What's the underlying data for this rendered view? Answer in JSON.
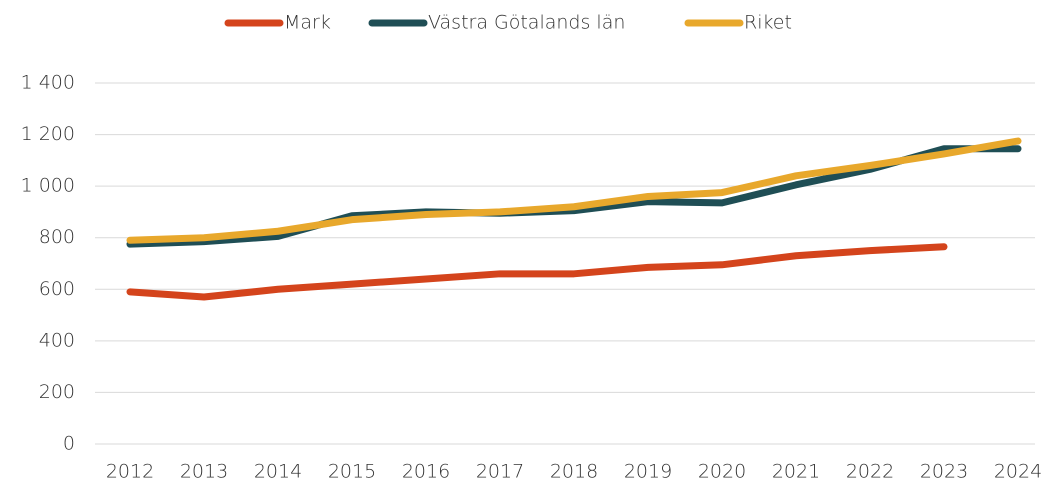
{
  "chart_data": {
    "type": "line",
    "x": [
      "2012",
      "2013",
      "2014",
      "2015",
      "2016",
      "2017",
      "2018",
      "2019",
      "2020",
      "2021",
      "2022",
      "2023",
      "2024"
    ],
    "series": [
      {
        "name": "Mark",
        "color": "#d4441c",
        "values": [
          590,
          570,
          600,
          620,
          640,
          660,
          660,
          685,
          695,
          730,
          750,
          765,
          null
        ]
      },
      {
        "name": "Västra Götalands län",
        "color": "#1f4e55",
        "values": [
          775,
          785,
          805,
          885,
          900,
          895,
          905,
          940,
          935,
          1005,
          1065,
          1145,
          1145
        ]
      },
      {
        "name": "Riket",
        "color": "#e8a82c",
        "values": [
          790,
          800,
          825,
          870,
          890,
          900,
          920,
          960,
          975,
          1040,
          1080,
          1125,
          1175
        ]
      }
    ],
    "ylim": [
      0,
      1400
    ],
    "yticks": [
      0,
      200,
      400,
      600,
      800,
      {
        "value": 1000,
        "label": "1 000"
      },
      {
        "value": 1200,
        "label": "1 200"
      },
      {
        "value": 1400,
        "label": "1 400"
      }
    ],
    "grid": true,
    "legend": "top"
  }
}
